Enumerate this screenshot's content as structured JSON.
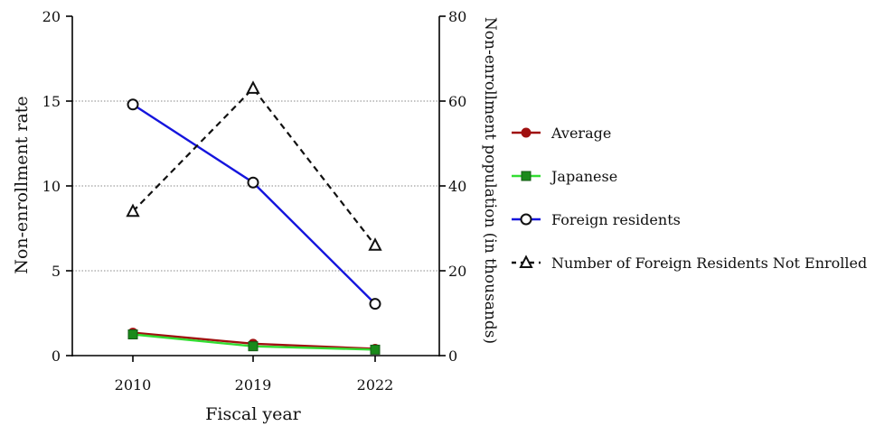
{
  "chart_data": {
    "type": "line",
    "categories": [
      "2010",
      "2019",
      "2022"
    ],
    "xlabel": "Fiscal year",
    "ylabel": "Non-enrollment rate",
    "ylabel_right": "Non-enrollment population (in thousands)",
    "ylim": [
      0,
      20
    ],
    "ylim_right": [
      0,
      80
    ],
    "yticks": [
      0,
      5,
      10,
      15,
      20
    ],
    "yticks_right": [
      0,
      20,
      40,
      60,
      80
    ],
    "grid": "horizontal dotted",
    "legend_position": "right",
    "series": [
      {
        "name": "Average",
        "axis": "left",
        "values": [
          1.35,
          0.7,
          0.4
        ],
        "color": "#a01010",
        "marker": "circle-filled",
        "dash": "solid"
      },
      {
        "name": "Japanese",
        "axis": "left",
        "values": [
          1.25,
          0.55,
          0.35
        ],
        "color": "#33dd33",
        "marker": "square-filled",
        "marker_color": "#1a8a1a",
        "dash": "solid"
      },
      {
        "name": "Foreign residents",
        "axis": "left",
        "values": [
          14.8,
          10.2,
          3.05
        ],
        "color": "#1515dd",
        "marker": "circle-open",
        "dash": "solid"
      },
      {
        "name": "Number of Foreign Residents Not Enrolled",
        "axis": "right",
        "values": [
          34,
          63,
          26
        ],
        "color": "#111111",
        "marker": "triangle-open",
        "dash": "dashed"
      }
    ]
  }
}
